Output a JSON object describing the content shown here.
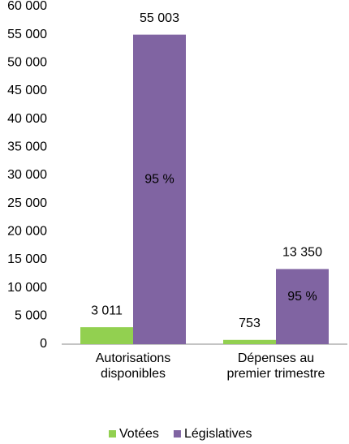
{
  "chart_data": {
    "type": "bar",
    "categories": [
      "Autorisations disponibles",
      "Dépenses au premier trimestre"
    ],
    "series": [
      {
        "name": "Votées",
        "color": "#92d050",
        "values": [
          3011,
          753
        ],
        "value_labels": [
          "3 011",
          "753"
        ]
      },
      {
        "name": "Législatives",
        "color": "#8064a2",
        "values": [
          55003,
          13350
        ],
        "value_labels": [
          "55 003",
          "13 350"
        ],
        "shares": [
          95,
          95
        ],
        "share_labels": [
          "95 %",
          "95 %"
        ]
      }
    ],
    "ylim": [
      0,
      60000
    ],
    "yticks": [
      0,
      {
        "value": 5000,
        "label": "5 000"
      },
      {
        "value": 10000,
        "label": "10 000"
      },
      {
        "value": 15000,
        "label": "15 000"
      },
      {
        "value": 20000,
        "label": "20 000"
      },
      {
        "value": 25000,
        "label": "25 000"
      },
      {
        "value": 30000,
        "label": "30 000"
      },
      {
        "value": 35000,
        "label": "35 000"
      },
      {
        "value": 40000,
        "label": "40 000"
      },
      {
        "value": 45000,
        "label": "45 000"
      },
      {
        "value": 50000,
        "label": "50 000"
      },
      {
        "value": 55000,
        "label": "55 000"
      },
      {
        "value": 60000,
        "label": "60 000"
      }
    ],
    "grid": false,
    "legend": "bottom"
  }
}
